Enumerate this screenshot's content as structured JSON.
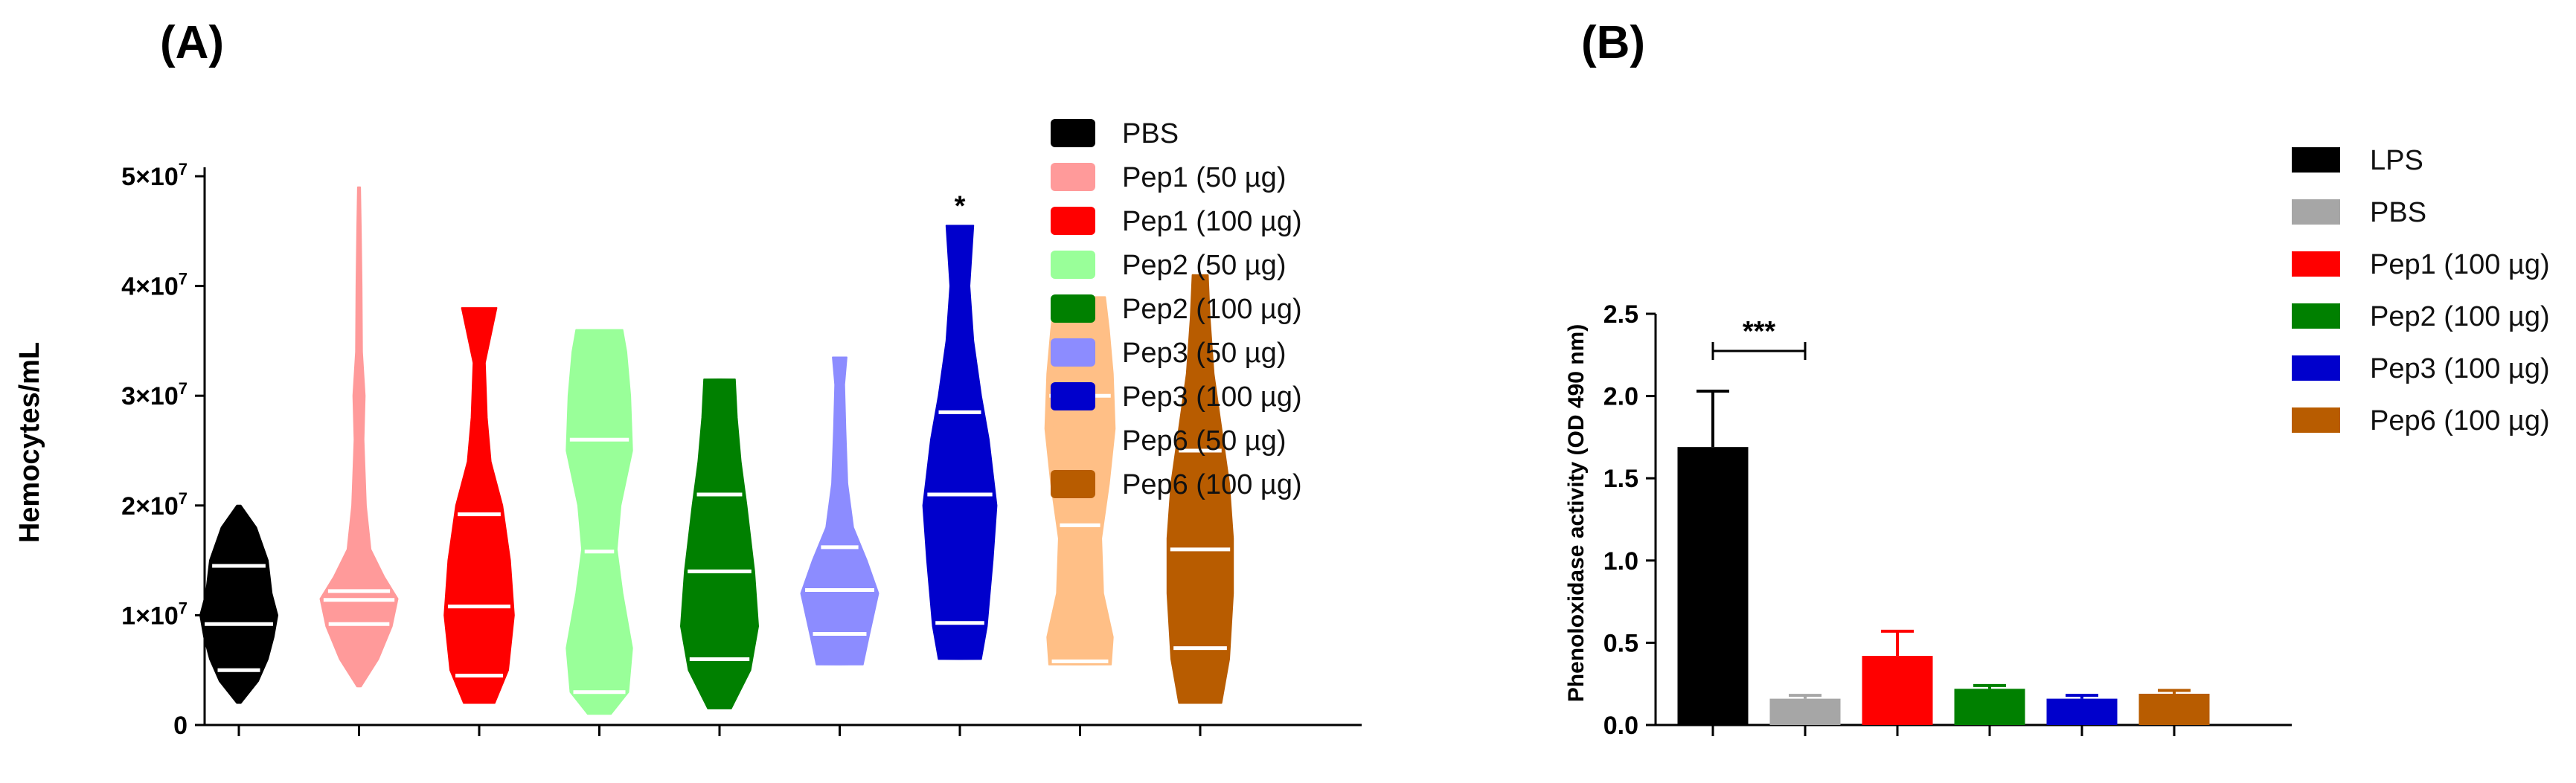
{
  "chart_data": [
    {
      "panel": "(A)",
      "type": "violin",
      "ylabel": "Hemocytes/mL",
      "ylim": [
        0,
        50000000
      ],
      "ytick_labels": [
        "0",
        "1×10",
        "2×10",
        "3×10",
        "4×10",
        "5×10"
      ],
      "ytick_exponent": "7",
      "ytick_values": [
        0,
        10000000,
        20000000,
        30000000,
        40000000,
        50000000
      ],
      "annotation": "*",
      "annotation_group": "Pep3 (100 µg)",
      "groups": [
        {
          "name": "PBS",
          "color": "#000000",
          "min": 2000000,
          "max": 20000000,
          "q1": 5000000,
          "median": 9200000,
          "q3": 14500000,
          "shape": [
            [
              2000000,
              0.05
            ],
            [
              4000000,
              0.5
            ],
            [
              6000000,
              0.75
            ],
            [
              8000000,
              0.9
            ],
            [
              10000000,
              1.0
            ],
            [
              12000000,
              0.85
            ],
            [
              15000000,
              0.75
            ],
            [
              18000000,
              0.45
            ],
            [
              20000000,
              0.05
            ]
          ]
        },
        {
          "name": "Pep1 (50 µg)",
          "color": "#ff9a9a",
          "min": 3500000,
          "max": 49000000,
          "q1": 9200000,
          "median": 11400000,
          "q3": 12200000,
          "shape": [
            [
              3500000,
              0.05
            ],
            [
              6000000,
              0.5
            ],
            [
              9000000,
              0.85
            ],
            [
              11500000,
              1.0
            ],
            [
              13500000,
              0.65
            ],
            [
              16000000,
              0.3
            ],
            [
              20000000,
              0.18
            ],
            [
              26000000,
              0.12
            ],
            [
              30000000,
              0.15
            ],
            [
              34000000,
              0.08
            ],
            [
              40000000,
              0.07
            ],
            [
              45000000,
              0.05
            ],
            [
              49000000,
              0.03
            ]
          ]
        },
        {
          "name": "Pep1 (100 µg)",
          "color": "#ff0000",
          "min": 2000000,
          "max": 38000000,
          "q1": 4500000,
          "median": 10800000,
          "q3": 19200000,
          "shape": [
            [
              2000000,
              0.4
            ],
            [
              5000000,
              0.75
            ],
            [
              10000000,
              0.9
            ],
            [
              15000000,
              0.8
            ],
            [
              20000000,
              0.6
            ],
            [
              24000000,
              0.3
            ],
            [
              28000000,
              0.2
            ],
            [
              33000000,
              0.15
            ],
            [
              38000000,
              0.45
            ]
          ]
        },
        {
          "name": "Pep2 (50 µg)",
          "color": "#99ff99",
          "min": 1000000,
          "max": 36000000,
          "q1": 3000000,
          "median": 15800000,
          "q3": 26000000,
          "shape": [
            [
              1000000,
              0.3
            ],
            [
              3000000,
              0.75
            ],
            [
              7000000,
              0.85
            ],
            [
              12000000,
              0.6
            ],
            [
              16000000,
              0.45
            ],
            [
              20000000,
              0.55
            ],
            [
              25000000,
              0.85
            ],
            [
              30000000,
              0.8
            ],
            [
              34000000,
              0.7
            ],
            [
              36000000,
              0.6
            ]
          ]
        },
        {
          "name": "Pep2 (100 µg)",
          "color": "#008000",
          "min": 1500000,
          "max": 31500000,
          "q1": 6000000,
          "median": 14000000,
          "q3": 21000000,
          "shape": [
            [
              1500000,
              0.3
            ],
            [
              5000000,
              0.8
            ],
            [
              9000000,
              1.0
            ],
            [
              14000000,
              0.9
            ],
            [
              20000000,
              0.7
            ],
            [
              24000000,
              0.55
            ],
            [
              28000000,
              0.45
            ],
            [
              31500000,
              0.4
            ]
          ]
        },
        {
          "name": "Pep3 (50 µg)",
          "color": "#8c8cff",
          "min": 5500000,
          "max": 33500000,
          "q1": 8300000,
          "median": 12300000,
          "q3": 16200000,
          "shape": [
            [
              5500000,
              0.6
            ],
            [
              8000000,
              0.75
            ],
            [
              12000000,
              1.0
            ],
            [
              15000000,
              0.7
            ],
            [
              18000000,
              0.35
            ],
            [
              22000000,
              0.2
            ],
            [
              27000000,
              0.15
            ],
            [
              31000000,
              0.12
            ],
            [
              33500000,
              0.18
            ]
          ]
        },
        {
          "name": "Pep3 (100 µg)",
          "color": "#0000cc",
          "min": 6000000,
          "max": 45500000,
          "q1": 9300000,
          "median": 21000000,
          "q3": 28500000,
          "shape": [
            [
              6000000,
              0.55
            ],
            [
              9000000,
              0.7
            ],
            [
              15000000,
              0.85
            ],
            [
              20000000,
              0.95
            ],
            [
              26000000,
              0.75
            ],
            [
              30000000,
              0.55
            ],
            [
              35000000,
              0.35
            ],
            [
              40000000,
              0.25
            ],
            [
              45500000,
              0.35
            ]
          ]
        },
        {
          "name": "Pep6 (50 µg)",
          "color": "#ffbf86",
          "min": 5500000,
          "max": 39000000,
          "q1": 5800000,
          "median": 18200000,
          "q3": 30000000,
          "shape": [
            [
              5500000,
              0.8
            ],
            [
              8000000,
              0.85
            ],
            [
              12000000,
              0.6
            ],
            [
              17000000,
              0.55
            ],
            [
              22000000,
              0.75
            ],
            [
              27000000,
              0.9
            ],
            [
              32000000,
              0.85
            ],
            [
              36000000,
              0.75
            ],
            [
              39000000,
              0.65
            ]
          ]
        },
        {
          "name": "Pep6 (100 µg)",
          "color": "#b85c00",
          "min": 2000000,
          "max": 41000000,
          "q1": 7000000,
          "median": 16000000,
          "q3": 25000000,
          "shape": [
            [
              2000000,
              0.55
            ],
            [
              6000000,
              0.75
            ],
            [
              12000000,
              0.85
            ],
            [
              17000000,
              0.85
            ],
            [
              22000000,
              0.75
            ],
            [
              27000000,
              0.55
            ],
            [
              32000000,
              0.35
            ],
            [
              37000000,
              0.25
            ],
            [
              41000000,
              0.2
            ]
          ]
        }
      ]
    },
    {
      "panel": "(B)",
      "type": "bar",
      "ylabel": "Phenoloxidase activity (OD 490 nm)",
      "ylim": [
        0,
        2.5
      ],
      "ytick_labels": [
        "0.0",
        "0.5",
        "1.0",
        "1.5",
        "2.0",
        "2.5"
      ],
      "ytick_values": [
        0,
        0.5,
        1.0,
        1.5,
        2.0,
        2.5
      ],
      "annotation": "***",
      "annotation_between": [
        "LPS",
        "PBS"
      ],
      "categories": [
        "LPS",
        "PBS",
        "Pep1 (100 µg)",
        "Pep2 (100 µg)",
        "Pep3 (100 µg)",
        "Pep6 (100 µg)"
      ],
      "values": [
        1.69,
        0.16,
        0.42,
        0.22,
        0.16,
        0.19
      ],
      "errors": [
        0.34,
        0.02,
        0.15,
        0.02,
        0.02,
        0.02
      ],
      "colors": [
        "#000000",
        "#a6a6a6",
        "#ff0000",
        "#008000",
        "#0000cc",
        "#b85c00"
      ]
    }
  ]
}
